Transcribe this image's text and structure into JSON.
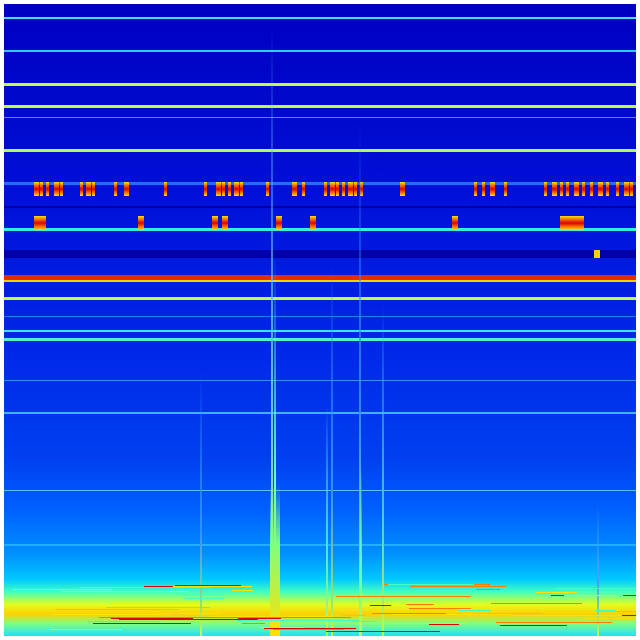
{
  "image": {
    "kind": "spectrogram",
    "colormap": "jet",
    "colors": {
      "background_low": "#0000c0",
      "background_mid": "#0040f0",
      "cyan": "#20e0ff",
      "green": "#80ff80",
      "yellow": "#e0ff20",
      "red": "#e00000"
    }
  }
}
